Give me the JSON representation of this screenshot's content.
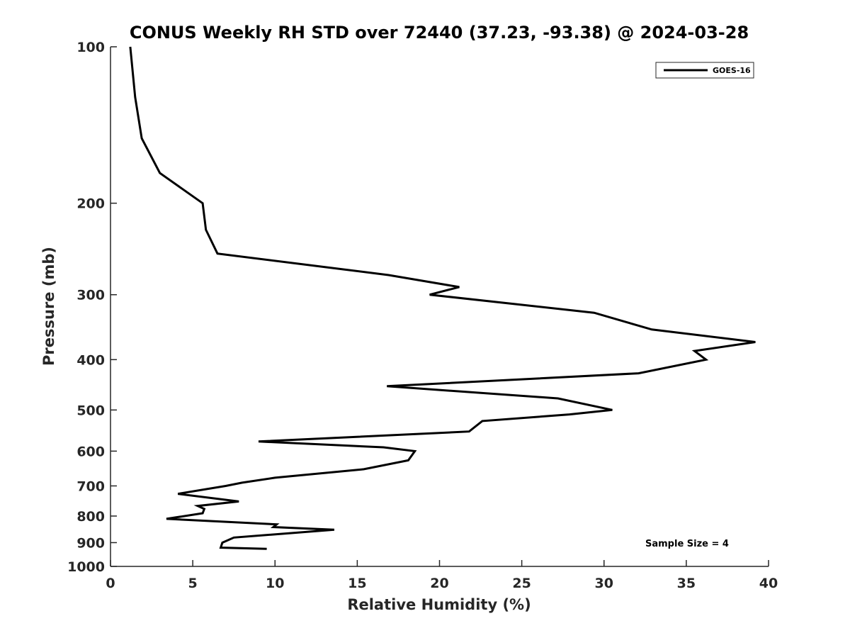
{
  "chart_data": {
    "type": "line",
    "title": "CONUS Weekly RH STD over 72440 (37.23, -93.38) @ 2024-03-28",
    "xlabel": "Relative Humidity (%)",
    "ylabel": "Pressure (mb)",
    "xlim": [
      0,
      40
    ],
    "ylim": [
      100,
      1000
    ],
    "y_scale": "log",
    "y_reversed": true,
    "x_ticks": [
      "0",
      "5",
      "10",
      "15",
      "20",
      "25",
      "30",
      "35",
      "40"
    ],
    "y_ticks": [
      "100",
      "200",
      "300",
      "400",
      "500",
      "600",
      "700",
      "800",
      "900",
      "1000"
    ],
    "grid": false,
    "legend": {
      "position": "top-right"
    },
    "annotation": "Sample Size = 4",
    "series": [
      {
        "name": "GOES-16",
        "color": "#000000",
        "points": [
          [
            1.2,
            100
          ],
          [
            1.5,
            125
          ],
          [
            1.9,
            150
          ],
          [
            3.0,
            175
          ],
          [
            5.6,
            200
          ],
          [
            5.8,
            225
          ],
          [
            6.5,
            250
          ],
          [
            16.9,
            275
          ],
          [
            21.2,
            290
          ],
          [
            19.4,
            300
          ],
          [
            29.4,
            325
          ],
          [
            32.9,
            350
          ],
          [
            39.2,
            370
          ],
          [
            35.5,
            385
          ],
          [
            36.2,
            400
          ],
          [
            32.1,
            425
          ],
          [
            16.8,
            450
          ],
          [
            27.2,
            475
          ],
          [
            30.5,
            500
          ],
          [
            27.9,
            510
          ],
          [
            22.6,
            525
          ],
          [
            21.8,
            550
          ],
          [
            9.0,
            575
          ],
          [
            16.6,
            590
          ],
          [
            18.5,
            600
          ],
          [
            18.1,
            625
          ],
          [
            15.4,
            650
          ],
          [
            10.0,
            675
          ],
          [
            8.0,
            690
          ],
          [
            7.0,
            700
          ],
          [
            4.1,
            725
          ],
          [
            7.8,
            750
          ],
          [
            5.3,
            765
          ],
          [
            5.7,
            775
          ],
          [
            5.6,
            790
          ],
          [
            3.4,
            810
          ],
          [
            10.1,
            830
          ],
          [
            9.9,
            840
          ],
          [
            13.6,
            850
          ],
          [
            7.5,
            880
          ],
          [
            6.8,
            900
          ],
          [
            6.7,
            920
          ],
          [
            9.5,
            925
          ]
        ]
      }
    ]
  }
}
